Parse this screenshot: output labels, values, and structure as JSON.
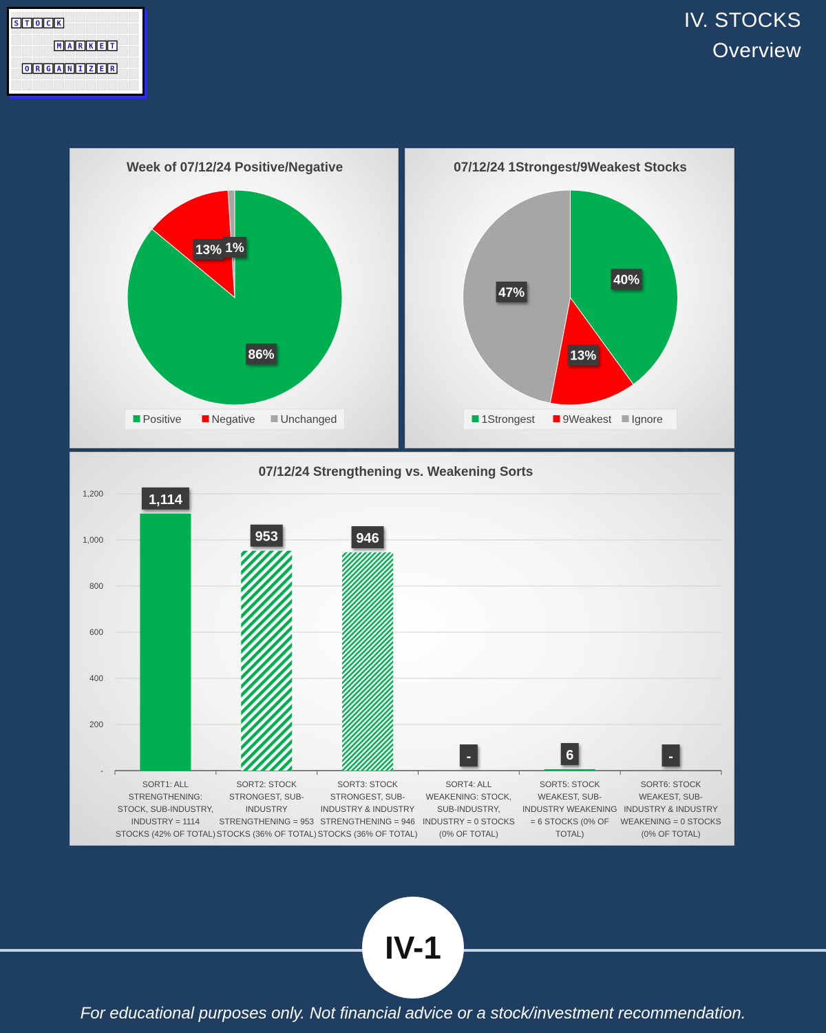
{
  "header": {
    "title": "IV. STOCKS",
    "subtitle": "Overview"
  },
  "logo": {
    "rows": [
      [
        "S",
        "T",
        "O",
        "C",
        "K"
      ],
      [
        "M",
        "A",
        "R",
        "K",
        "E",
        "T"
      ],
      [
        "O",
        "R",
        "G",
        "A",
        "N",
        "I",
        "Z",
        "E",
        "R"
      ]
    ]
  },
  "colors": {
    "green": "#00b050",
    "red": "#ff0000",
    "gray": "#a6a6a6",
    "background": "#1e3e62"
  },
  "chart_data": [
    {
      "type": "pie",
      "title": "Week of 07/12/24 Positive/Negative",
      "slices": [
        {
          "name": "Positive",
          "value": 86,
          "label": "86%",
          "color": "#00b050"
        },
        {
          "name": "Negative",
          "value": 13,
          "label": "13%",
          "color": "#ff0000"
        },
        {
          "name": "Unchanged",
          "value": 1,
          "label": "1%",
          "color": "#a6a6a6"
        }
      ],
      "legend": "bottom"
    },
    {
      "type": "pie",
      "title": "07/12/24 1Strongest/9Weakest Stocks",
      "slices": [
        {
          "name": "1Strongest",
          "value": 40,
          "label": "40%",
          "color": "#00b050"
        },
        {
          "name": "9Weakest",
          "value": 13,
          "label": "13%",
          "color": "#ff0000"
        },
        {
          "name": "Ignore",
          "value": 47,
          "label": "47%",
          "color": "#a6a6a6"
        }
      ],
      "legend": "bottom"
    },
    {
      "type": "bar",
      "title": "07/12/24 Strengthening vs. Weakening Sorts",
      "ylim": [
        0,
        1200
      ],
      "yticks": [
        {
          "value": 0,
          "label": "-"
        },
        {
          "value": 200,
          "label": "200"
        },
        {
          "value": 400,
          "label": "400"
        },
        {
          "value": 600,
          "label": "600"
        },
        {
          "value": 800,
          "label": "800"
        },
        {
          "value": 1000,
          "label": "1,000"
        },
        {
          "value": 1200,
          "label": "1,200"
        }
      ],
      "grid": true,
      "categories": [
        [
          "SORT1: ALL",
          "STRENGTHENING:",
          "STOCK, SUB-INDUSTRY,",
          "INDUSTRY = 1114",
          "STOCKS (42% OF TOTAL)"
        ],
        [
          "SORT2: STOCK",
          "STRONGEST, SUB-",
          "INDUSTRY",
          "STRENGTHENING = 953",
          "STOCKS (36% OF TOTAL)"
        ],
        [
          "SORT3: STOCK",
          "STRONGEST, SUB-",
          "INDUSTRY & INDUSTRY",
          "STRENGTHENING = 946",
          "STOCKS (36% OF TOTAL)"
        ],
        [
          "SORT4: ALL",
          "WEAKENING: STOCK,",
          "SUB-INDUSTRY,",
          "INDUSTRY = 0 STOCKS",
          "(0% OF TOTAL)"
        ],
        [
          "SORT5: STOCK",
          "WEAKEST, SUB-",
          "INDUSTRY WEAKENING",
          "= 6 STOCKS (0% OF",
          "TOTAL)"
        ],
        [
          "SORT6: STOCK",
          "WEAKEST, SUB-",
          "INDUSTRY & INDUSTRY",
          "WEAKENING = 0 STOCKS",
          "(0% OF TOTAL)"
        ]
      ],
      "values": [
        1114,
        953,
        946,
        0,
        6,
        0
      ],
      "data_labels": [
        "1,114",
        "953",
        "946",
        "-",
        "6",
        "-"
      ],
      "fills": [
        "solid",
        "hatch-wide",
        "hatch-dense",
        "solid",
        "solid",
        "solid"
      ]
    }
  ],
  "footer": {
    "page": "IV-1",
    "disclaimer": "For educational purposes only. Not financial advice or a stock/investment recommendation."
  }
}
